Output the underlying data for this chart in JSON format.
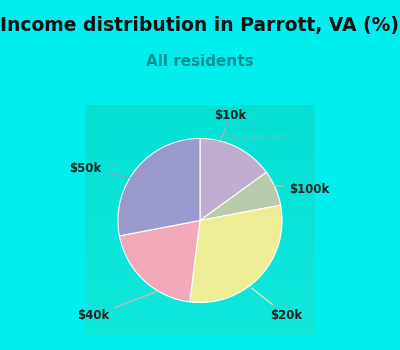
{
  "title": "Income distribution in Parrott, VA (%)",
  "subtitle": "All residents",
  "title_fontsize": 13.5,
  "subtitle_fontsize": 11,
  "top_bg_color": "#00EEEE",
  "chart_bg_color": "#FFFFFF",
  "border_color": "#00EEEE",
  "slices": [
    {
      "label": "$10k",
      "value": 15,
      "color": "#C0ADCF"
    },
    {
      "label": "$100k",
      "value": 7,
      "color": "#BACBAA"
    },
    {
      "label": "$20k",
      "value": 30,
      "color": "#EEEE99"
    },
    {
      "label": "$40k",
      "value": 20,
      "color": "#F2AABB"
    },
    {
      "label": "$50k",
      "value": 28,
      "color": "#9999CC"
    }
  ],
  "watermark": "City-Data.com",
  "label_fontsize": 8.5
}
